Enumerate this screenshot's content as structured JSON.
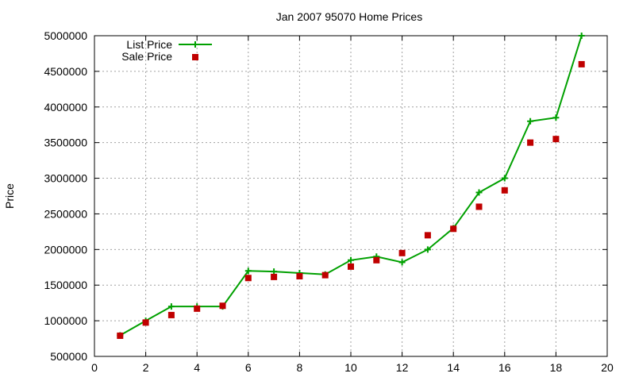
{
  "chart_data": {
    "type": "line",
    "title": "Jan 2007 95070 Home Prices",
    "xlabel": "",
    "ylabel": "Price",
    "xlim": [
      0,
      20
    ],
    "ylim": [
      500000,
      5000000
    ],
    "xticks": [
      0,
      2,
      4,
      6,
      8,
      10,
      12,
      14,
      16,
      18,
      20
    ],
    "yticks": [
      500000,
      1000000,
      1500000,
      2000000,
      2500000,
      3000000,
      3500000,
      4000000,
      4500000,
      5000000
    ],
    "grid": true,
    "legend_position": "top-left",
    "series": [
      {
        "name": "List Price",
        "style": "line-with-plus-markers",
        "color": "#00a000",
        "x": [
          1,
          2,
          3,
          4,
          5,
          6,
          7,
          8,
          9,
          10,
          11,
          12,
          13,
          14,
          15,
          16,
          17,
          18,
          19
        ],
        "values": [
          795000,
          1000000,
          1200000,
          1200000,
          1200000,
          1700000,
          1690000,
          1670000,
          1650000,
          1850000,
          1900000,
          1820000,
          2000000,
          2300000,
          2800000,
          3000000,
          3800000,
          3850000,
          5000000
        ]
      },
      {
        "name": "Sale Price",
        "style": "square-points",
        "color": "#c00000",
        "x": [
          1,
          2,
          3,
          4,
          5,
          6,
          7,
          8,
          9,
          10,
          11,
          12,
          13,
          14,
          15,
          16,
          17,
          18,
          19
        ],
        "values": [
          790000,
          975000,
          1080000,
          1170000,
          1210000,
          1600000,
          1615000,
          1625000,
          1640000,
          1760000,
          1850000,
          1950000,
          2200000,
          2290000,
          2600000,
          2830000,
          3500000,
          3550000,
          4600000
        ]
      }
    ]
  }
}
